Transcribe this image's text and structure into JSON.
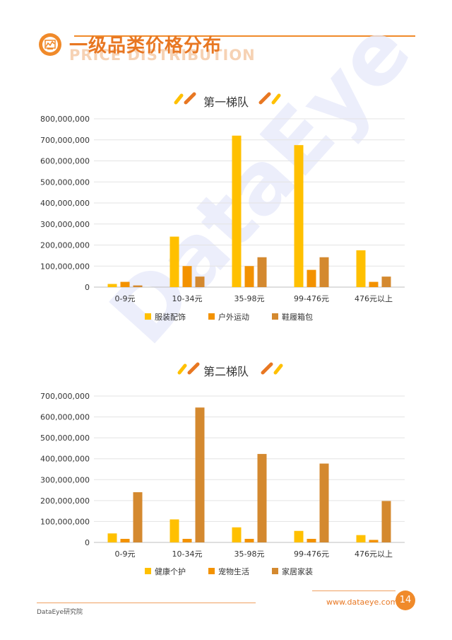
{
  "header": {
    "title": "一级品类价格分布",
    "subtitle": "PRICE DISTRIBUTION",
    "icon": "chart-icon"
  },
  "watermark": "DataEye",
  "footer": {
    "org": "DataEye研究院",
    "url": "www.dataeye.com",
    "page": "14"
  },
  "colors": {
    "accent": "#F08A2A",
    "series1": "#FFC000",
    "series2": "#F39200",
    "series3": "#D4892F"
  },
  "chart_data": [
    {
      "type": "bar",
      "title": "第一梯队",
      "categories": [
        "0-9元",
        "10-34元",
        "35-98元",
        "99-476元",
        "476元以上"
      ],
      "ylim": [
        0,
        800000000
      ],
      "yticks": [
        "0",
        "100,000,000",
        "200,000,000",
        "300,000,000",
        "400,000,000",
        "500,000,000",
        "600,000,000",
        "700,000,000",
        "800,000,000"
      ],
      "grid": true,
      "legend": "bottom",
      "series": [
        {
          "name": "服装配饰",
          "values": [
            15000000,
            240000000,
            720000000,
            675000000,
            175000000
          ]
        },
        {
          "name": "户外运动",
          "values": [
            25000000,
            100000000,
            100000000,
            82000000,
            25000000
          ]
        },
        {
          "name": "鞋履箱包",
          "values": [
            8000000,
            50000000,
            142000000,
            142000000,
            50000000
          ]
        }
      ]
    },
    {
      "type": "bar",
      "title": "第二梯队",
      "categories": [
        "0-9元",
        "10-34元",
        "35-98元",
        "99-476元",
        "476元以上"
      ],
      "ylim": [
        0,
        700000000
      ],
      "yticks": [
        "0",
        "100,000,000",
        "200,000,000",
        "300,000,000",
        "400,000,000",
        "500,000,000",
        "600,000,000",
        "700,000,000"
      ],
      "grid": true,
      "legend": "bottom",
      "series": [
        {
          "name": "健康个护",
          "values": [
            43000000,
            110000000,
            72000000,
            55000000,
            35000000
          ]
        },
        {
          "name": "宠物生活",
          "values": [
            17000000,
            17000000,
            17000000,
            17000000,
            12000000
          ]
        },
        {
          "name": "家居家装",
          "values": [
            240000000,
            645000000,
            423000000,
            377000000,
            198000000
          ]
        }
      ]
    }
  ]
}
